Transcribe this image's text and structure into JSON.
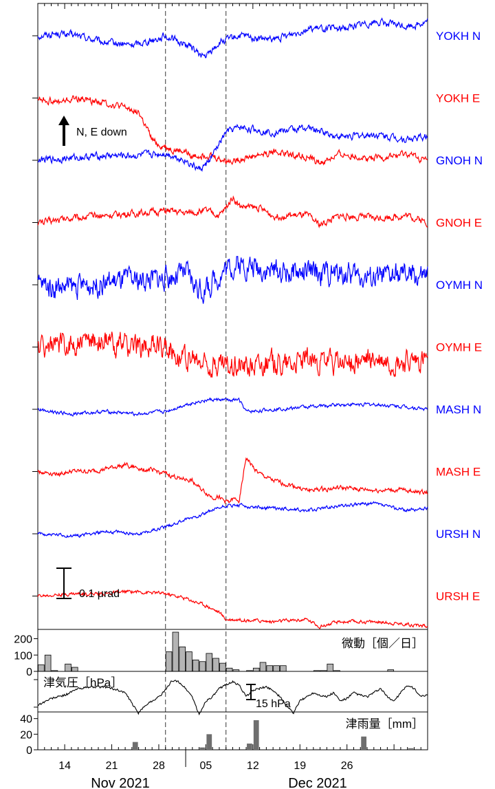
{
  "chart_data": [
    {
      "type": "line",
      "scale_annotation": "0.1 μrad",
      "direction_annotation": "N, E down",
      "x_range_days": [
        0,
        58
      ],
      "event_lines_days": [
        19,
        28
      ],
      "series": [
        {
          "name": "YOKH N",
          "color": "#0000ff",
          "trend_days": [
            0,
            3,
            6,
            10,
            14,
            18,
            19,
            23,
            24,
            25,
            27,
            30,
            35,
            40,
            45,
            50,
            55,
            58
          ],
          "trend_values": [
            0,
            0.01,
            0,
            -0.03,
            -0.04,
            -0.01,
            0,
            -0.05,
            -0.08,
            -0.09,
            -0.03,
            0,
            -0.02,
            0.03,
            0.03,
            0.06,
            0.04,
            0.06
          ],
          "noise": 0.012,
          "offset": 0
        },
        {
          "name": "YOKH E",
          "color": "#ff0000",
          "trend_days": [
            0,
            3,
            6,
            10,
            14,
            15,
            16,
            17,
            18,
            19,
            20,
            22,
            23,
            25,
            28,
            30,
            35,
            40,
            42,
            45,
            50,
            55,
            58
          ],
          "trend_values": [
            0,
            -0.02,
            0,
            -0.02,
            -0.05,
            -0.06,
            -0.12,
            -0.18,
            -0.2,
            -0.21,
            -0.22,
            -0.23,
            -0.25,
            -0.24,
            -0.27,
            -0.26,
            -0.23,
            -0.25,
            -0.28,
            -0.24,
            -0.26,
            -0.24,
            -0.27
          ],
          "noise": 0.012,
          "offset": -0.1
        },
        {
          "name": "GNOH N",
          "color": "#0000ff",
          "trend_days": [
            0,
            5,
            10,
            15,
            19,
            22,
            24,
            25,
            26,
            28,
            30,
            35,
            40,
            45,
            50,
            55,
            58
          ],
          "trend_values": [
            0,
            0.01,
            0.02,
            0.02,
            0.03,
            0.0,
            -0.04,
            -0.02,
            0.02,
            0.12,
            0.14,
            0.12,
            0.14,
            0.1,
            0.11,
            0.09,
            0.1
          ],
          "noise": 0.012,
          "offset": -0.5
        },
        {
          "name": "GNOH E",
          "color": "#ff0000",
          "trend_days": [
            0,
            5,
            10,
            15,
            19,
            22,
            25,
            27,
            28,
            29,
            30,
            33,
            35,
            40,
            42,
            45,
            50,
            55,
            58
          ],
          "trend_values": [
            0,
            0.02,
            0.03,
            0.04,
            0.05,
            0.04,
            0.05,
            0.03,
            0.06,
            0.11,
            0.07,
            0.06,
            0.03,
            0.03,
            -0.01,
            0.03,
            0.02,
            0.03,
            0.0
          ],
          "noise": 0.012,
          "offset": -0.7
        },
        {
          "name": "OYMH N",
          "color": "#0000ff",
          "trend_days": [
            0,
            5,
            10,
            15,
            19,
            22,
            24,
            25,
            28,
            30,
            35,
            40,
            45,
            50,
            55,
            58
          ],
          "trend_values": [
            0,
            -0.01,
            0.01,
            0.02,
            0.03,
            0.05,
            -0.02,
            -0.02,
            0.07,
            0.09,
            0.06,
            0.05,
            0.05,
            0.03,
            0.04,
            0.03
          ],
          "noise": 0.04,
          "offset": -0.9
        },
        {
          "name": "OYMH E",
          "color": "#ff0000",
          "trend_days": [
            0,
            5,
            8,
            10,
            15,
            19,
            22,
            25,
            28,
            30,
            35,
            40,
            45,
            50,
            55,
            58
          ],
          "trend_values": [
            0,
            0.01,
            0.03,
            0.02,
            0.0,
            0.01,
            -0.05,
            -0.07,
            -0.08,
            -0.07,
            -0.07,
            -0.06,
            -0.07,
            -0.06,
            -0.07,
            -0.06
          ],
          "noise": 0.04,
          "offset": -1.1
        },
        {
          "name": "MASH N",
          "color": "#0000ff",
          "trend_days": [
            0,
            5,
            10,
            15,
            19,
            22,
            25,
            28,
            30,
            31,
            32,
            35,
            40,
            45,
            50,
            55,
            58
          ],
          "trend_values": [
            0,
            -0.02,
            -0.01,
            -0.02,
            -0.01,
            0.02,
            0.04,
            0.04,
            0.04,
            -0.01,
            -0.01,
            0.0,
            0.01,
            0.02,
            0.02,
            0.01,
            0.0
          ],
          "noise": 0.006,
          "offset": -1.3
        },
        {
          "name": "MASH E",
          "color": "#ff0000",
          "trend_days": [
            0,
            3,
            5,
            8,
            10,
            13,
            14,
            18,
            20,
            23,
            24,
            25,
            26,
            27,
            28,
            29,
            30,
            31,
            32,
            33,
            35,
            38,
            40,
            45,
            50,
            55,
            58
          ],
          "trend_values": [
            0,
            -0.01,
            0,
            0.0,
            0.01,
            0.03,
            0.02,
            0,
            -0.02,
            -0.04,
            -0.07,
            -0.09,
            -0.11,
            -0.11,
            -0.13,
            -0.12,
            -0.12,
            0.06,
            0.02,
            -0.01,
            -0.04,
            -0.06,
            -0.08,
            -0.07,
            -0.08,
            -0.08,
            -0.09
          ],
          "noise": 0.008,
          "offset": -1.5
        },
        {
          "name": "URSH N",
          "color": "#0000ff",
          "trend_days": [
            0,
            5,
            10,
            15,
            19,
            22,
            25,
            28,
            30,
            35,
            40,
            45,
            50,
            55,
            58
          ],
          "trend_values": [
            0,
            -0.01,
            0.01,
            0.0,
            0.03,
            0.06,
            0.09,
            0.12,
            0.12,
            0.11,
            0.1,
            0.12,
            0.13,
            0.1,
            0.11
          ],
          "noise": 0.006,
          "offset": -1.7
        },
        {
          "name": "URSH E",
          "color": "#ff0000",
          "trend_days": [
            0,
            5,
            10,
            14,
            19,
            22,
            24,
            25,
            27,
            28,
            30,
            35,
            40,
            42,
            45,
            50,
            55,
            58
          ],
          "trend_values": [
            0,
            0.01,
            0.01,
            0.02,
            0.01,
            -0.01,
            -0.03,
            -0.04,
            -0.07,
            -0.1,
            -0.1,
            -0.11,
            -0.1,
            -0.13,
            -0.11,
            -0.11,
            -0.12,
            -0.13
          ],
          "noise": 0.006,
          "offset": -1.9
        }
      ]
    },
    {
      "type": "bar",
      "title": "微動［個／日］",
      "yticks": [
        0,
        100,
        200
      ],
      "ylim": [
        0,
        240
      ],
      "days": [
        0,
        1,
        2,
        3,
        4,
        5,
        6,
        7,
        8,
        9,
        10,
        11,
        12,
        13,
        14,
        15,
        16,
        17,
        18,
        19,
        20,
        21,
        22,
        23,
        24,
        25,
        26,
        27,
        28,
        29,
        30,
        31,
        32,
        33,
        34,
        35,
        36,
        37,
        38,
        39,
        40,
        41,
        42,
        43,
        44,
        45,
        46,
        47,
        48,
        49,
        50,
        51,
        52,
        53,
        54,
        55,
        56,
        57
      ],
      "values": [
        40,
        100,
        5,
        0,
        45,
        25,
        0,
        0,
        0,
        0,
        0,
        0,
        0,
        0,
        0,
        0,
        0,
        0,
        0,
        120,
        240,
        150,
        120,
        70,
        60,
        110,
        80,
        50,
        20,
        10,
        0,
        5,
        20,
        55,
        35,
        35,
        35,
        0,
        0,
        0,
        0,
        5,
        5,
        45,
        5,
        0,
        0,
        0,
        0,
        0,
        0,
        0,
        10,
        0,
        0,
        0,
        0,
        0
      ]
    },
    {
      "type": "line",
      "title": "津気圧［hPa］",
      "scale_annotation": "15 hPa",
      "days": [
        0,
        2,
        4,
        6,
        8,
        10,
        12,
        13,
        14,
        15,
        16,
        17,
        18,
        19,
        20,
        21,
        22,
        23,
        24,
        25,
        26,
        27,
        28,
        29,
        30,
        31,
        32,
        33,
        34,
        35,
        36,
        37,
        38,
        39,
        40,
        41,
        42,
        43,
        44,
        45,
        46,
        47,
        48,
        49,
        50,
        51,
        52,
        53,
        54,
        55,
        56,
        57,
        58
      ],
      "values": [
        0,
        8,
        12,
        20,
        22,
        22,
        18,
        15,
        2,
        -10,
        0,
        5,
        10,
        18,
        30,
        28,
        20,
        10,
        -12,
        5,
        10,
        20,
        25,
        28,
        24,
        10,
        18,
        20,
        22,
        18,
        10,
        0,
        -10,
        5,
        10,
        15,
        12,
        10,
        15,
        5,
        8,
        15,
        12,
        10,
        15,
        20,
        10,
        5,
        15,
        24,
        20,
        10,
        12
      ]
    },
    {
      "type": "bar",
      "title": "津雨量［mm］",
      "yticks": [
        0,
        20,
        40
      ],
      "ylim": [
        0,
        45
      ],
      "days": [
        0,
        1,
        2,
        3,
        4,
        5,
        6,
        7,
        8,
        9,
        10,
        11,
        12,
        13,
        14,
        15,
        16,
        17,
        18,
        19,
        20,
        21,
        22,
        23,
        24,
        25,
        26,
        27,
        28,
        29,
        30,
        31,
        32,
        33,
        34,
        35,
        36,
        37,
        38,
        39,
        40,
        41,
        42,
        43,
        44,
        45,
        46,
        47,
        48,
        49,
        50,
        51,
        52,
        53,
        54,
        55,
        56,
        57
      ],
      "values": [
        0,
        0,
        0,
        0,
        0,
        0,
        0,
        0,
        0,
        0,
        0,
        0,
        0,
        0,
        10,
        0,
        0,
        0,
        0,
        0,
        0,
        0,
        0,
        0,
        3,
        20,
        0,
        0,
        0,
        0,
        0,
        8,
        38,
        0,
        0,
        0,
        0,
        0,
        0,
        0,
        0,
        1,
        0,
        0,
        0,
        0,
        0,
        0,
        17,
        0,
        0,
        0,
        0,
        0,
        0,
        2,
        1,
        0
      ]
    }
  ],
  "x_axis": {
    "tick_labels": [
      "14",
      "21",
      "28",
      "05",
      "12",
      "19",
      "26"
    ],
    "tick_days": [
      4,
      11,
      18,
      25,
      32,
      39,
      46
    ],
    "month_labels": [
      "Nov 2021",
      "Dec 2021"
    ]
  }
}
